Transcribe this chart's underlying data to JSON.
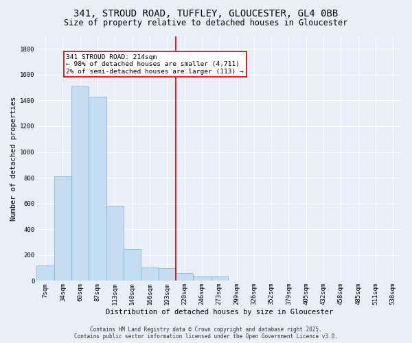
{
  "title": "341, STROUD ROAD, TUFFLEY, GLOUCESTER, GL4 0BB",
  "subtitle": "Size of property relative to detached houses in Gloucester",
  "xlabel": "Distribution of detached houses by size in Gloucester",
  "ylabel": "Number of detached properties",
  "categories": [
    "7sqm",
    "34sqm",
    "60sqm",
    "87sqm",
    "113sqm",
    "140sqm",
    "166sqm",
    "193sqm",
    "220sqm",
    "246sqm",
    "273sqm",
    "299sqm",
    "326sqm",
    "352sqm",
    "379sqm",
    "405sqm",
    "432sqm",
    "458sqm",
    "485sqm",
    "511sqm",
    "538sqm"
  ],
  "values": [
    120,
    810,
    1510,
    1430,
    580,
    245,
    105,
    100,
    60,
    35,
    35,
    0,
    0,
    0,
    0,
    0,
    0,
    0,
    0,
    0,
    0
  ],
  "bar_color": "#c5ddf0",
  "bar_edgecolor": "#8ab4d4",
  "vline_x_index": 8,
  "vline_color": "#cc0000",
  "annotation_text": "341 STROUD ROAD: 214sqm\n← 98% of detached houses are smaller (4,711)\n2% of semi-detached houses are larger (113) →",
  "annotation_box_color": "#ffffff",
  "annotation_box_edgecolor": "#cc0000",
  "ylim": [
    0,
    1900
  ],
  "yticks": [
    0,
    200,
    400,
    600,
    800,
    1000,
    1200,
    1400,
    1600,
    1800
  ],
  "background_color": "#e8eff8",
  "plot_background": "#e8eff8",
  "footer_line1": "Contains HM Land Registry data © Crown copyright and database right 2025.",
  "footer_line2": "Contains public sector information licensed under the Open Government Licence v3.0.",
  "title_fontsize": 10,
  "subtitle_fontsize": 8.5,
  "tick_fontsize": 6.5,
  "ylabel_fontsize": 7.5,
  "xlabel_fontsize": 7.5,
  "footer_fontsize": 5.5,
  "annotation_fontsize": 6.8
}
